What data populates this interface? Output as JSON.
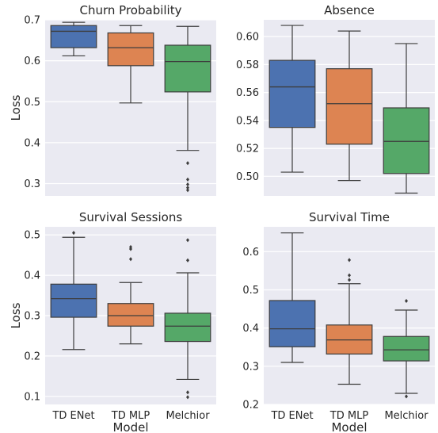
{
  "chart_data": [
    {
      "type": "box",
      "title": "Churn Probability",
      "xlabel": "",
      "ylabel": "Loss",
      "categories": [
        "TD ENet",
        "TD MLP",
        "Melchior"
      ],
      "show_xticks": false,
      "ylim": [
        0.27,
        0.7
      ],
      "yticks": [
        0.3,
        0.4,
        0.5,
        0.6,
        0.7
      ],
      "grid": true,
      "boxes": [
        {
          "name": "TD ENet",
          "whisker_low": 0.612,
          "q1": 0.632,
          "median": 0.672,
          "q3": 0.686,
          "whisker_high": 0.694,
          "outliers": [],
          "color": "#4c72b0"
        },
        {
          "name": "TD MLP",
          "whisker_low": 0.497,
          "q1": 0.588,
          "median": 0.632,
          "q3": 0.668,
          "whisker_high": 0.686,
          "outliers": [],
          "color": "#dd8452"
        },
        {
          "name": "Melchior",
          "whisker_low": 0.381,
          "q1": 0.524,
          "median": 0.598,
          "q3": 0.638,
          "whisker_high": 0.684,
          "outliers": [
            0.35,
            0.31,
            0.298,
            0.29,
            0.284
          ],
          "color": "#55a868"
        }
      ]
    },
    {
      "type": "box",
      "title": "Absence",
      "xlabel": "",
      "ylabel": "",
      "categories": [
        "TD ENet",
        "TD MLP",
        "Melchior"
      ],
      "show_xticks": false,
      "ylim": [
        0.486,
        0.612
      ],
      "yticks": [
        0.5,
        0.52,
        0.54,
        0.56,
        0.58,
        0.6
      ],
      "ytick_labels": [
        "0.50",
        "0.52",
        "0.54",
        "0.56",
        "0.58",
        "0.60"
      ],
      "grid": true,
      "boxes": [
        {
          "name": "TD ENet",
          "whisker_low": 0.503,
          "q1": 0.535,
          "median": 0.564,
          "q3": 0.583,
          "whisker_high": 0.608,
          "outliers": [],
          "color": "#4c72b0"
        },
        {
          "name": "TD MLP",
          "whisker_low": 0.497,
          "q1": 0.523,
          "median": 0.552,
          "q3": 0.577,
          "whisker_high": 0.604,
          "outliers": [],
          "color": "#dd8452"
        },
        {
          "name": "Melchior",
          "whisker_low": 0.488,
          "q1": 0.502,
          "median": 0.525,
          "q3": 0.549,
          "whisker_high": 0.595,
          "outliers": [],
          "color": "#55a868"
        }
      ]
    },
    {
      "type": "box",
      "title": "Survival Sessions",
      "xlabel": "Model",
      "ylabel": "Loss",
      "categories": [
        "TD ENet",
        "TD MLP",
        "Melchior"
      ],
      "show_xticks": true,
      "ylim": [
        0.08,
        0.52
      ],
      "yticks": [
        0.1,
        0.2,
        0.3,
        0.4,
        0.5
      ],
      "grid": true,
      "boxes": [
        {
          "name": "TD ENet",
          "whisker_low": 0.216,
          "q1": 0.296,
          "median": 0.342,
          "q3": 0.378,
          "whisker_high": 0.494,
          "outliers": [
            0.505
          ],
          "color": "#4c72b0"
        },
        {
          "name": "TD MLP",
          "whisker_low": 0.23,
          "q1": 0.274,
          "median": 0.3,
          "q3": 0.33,
          "whisker_high": 0.382,
          "outliers": [
            0.47,
            0.465,
            0.44
          ],
          "color": "#dd8452"
        },
        {
          "name": "Melchior",
          "whisker_low": 0.142,
          "q1": 0.236,
          "median": 0.274,
          "q3": 0.306,
          "whisker_high": 0.406,
          "outliers": [
            0.487,
            0.437,
            0.11,
            0.098
          ],
          "color": "#55a868"
        }
      ]
    },
    {
      "type": "box",
      "title": "Survival Time",
      "xlabel": "Model",
      "ylabel": "",
      "categories": [
        "TD ENet",
        "TD MLP",
        "Melchior"
      ],
      "show_xticks": true,
      "ylim": [
        0.2,
        0.665
      ],
      "yticks": [
        0.2,
        0.3,
        0.4,
        0.5,
        0.6
      ],
      "grid": true,
      "boxes": [
        {
          "name": "TD ENet",
          "whisker_low": 0.31,
          "q1": 0.351,
          "median": 0.398,
          "q3": 0.472,
          "whisker_high": 0.649,
          "outliers": [],
          "color": "#4c72b0"
        },
        {
          "name": "TD MLP",
          "whisker_low": 0.253,
          "q1": 0.332,
          "median": 0.369,
          "q3": 0.408,
          "whisker_high": 0.516,
          "outliers": [
            0.578,
            0.538,
            0.526
          ],
          "color": "#dd8452"
        },
        {
          "name": "Melchior",
          "whisker_low": 0.229,
          "q1": 0.314,
          "median": 0.343,
          "q3": 0.378,
          "whisker_high": 0.447,
          "outliers": [
            0.471,
            0.221
          ],
          "color": "#55a868"
        }
      ]
    }
  ]
}
